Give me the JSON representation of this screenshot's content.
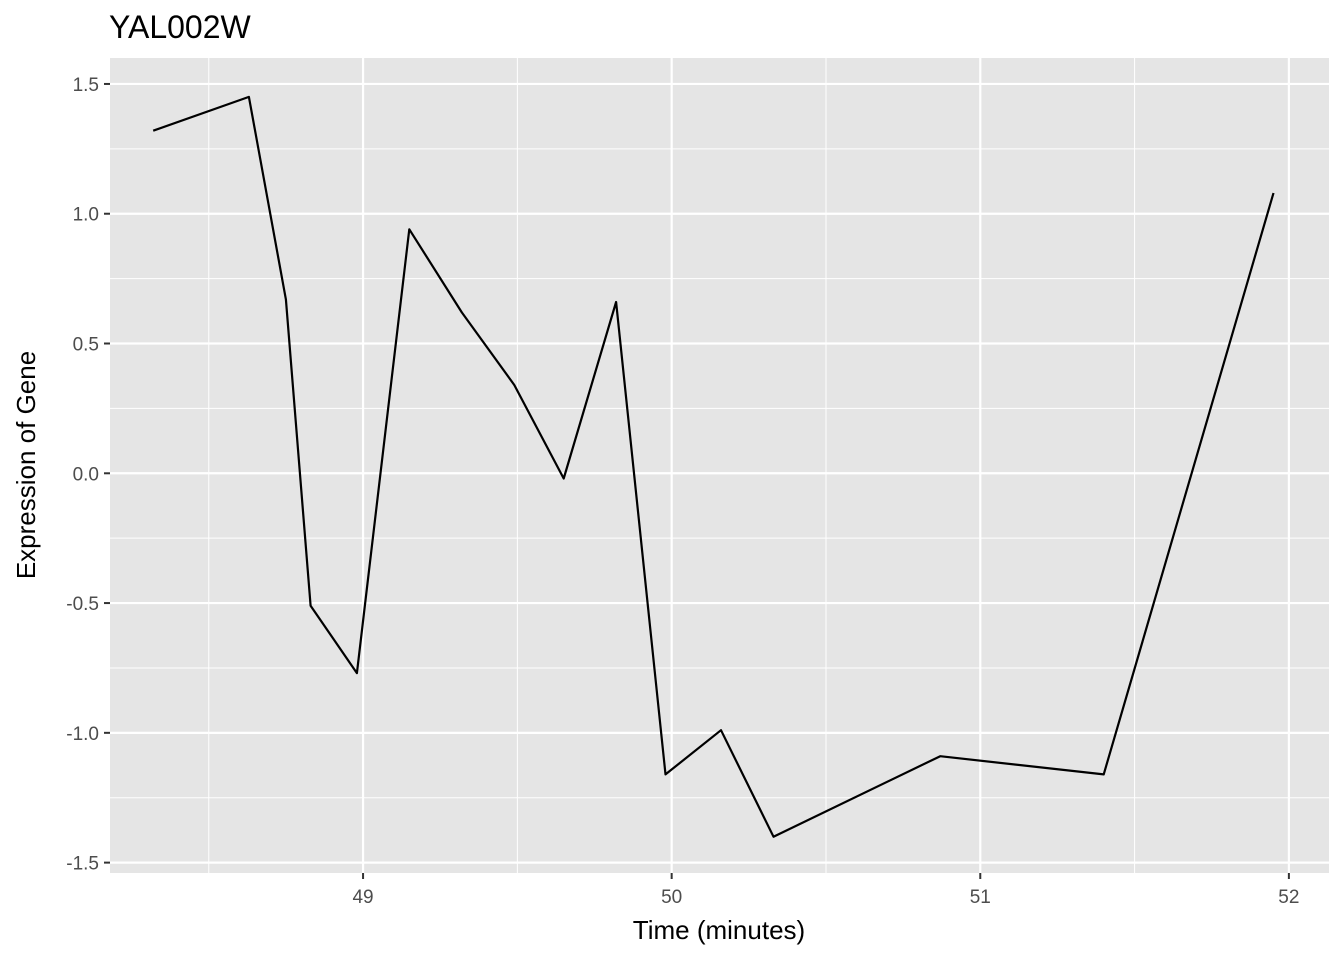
{
  "chart_data": {
    "type": "line",
    "title": "YAL002W",
    "xlabel": "Time (minutes)",
    "ylabel": "Expression of Gene",
    "xlim": [
      48.18,
      52.13
    ],
    "ylim": [
      -1.54,
      1.6
    ],
    "x_ticks": [
      49,
      50,
      51,
      52
    ],
    "x_tick_labels": [
      "49",
      "50",
      "51",
      "52"
    ],
    "y_ticks": [
      -1.5,
      -1.0,
      -0.5,
      0.0,
      0.5,
      1.0,
      1.5
    ],
    "y_tick_labels": [
      "-1.5",
      "-1.0",
      "-0.5",
      "0.0",
      "0.5",
      "1.0",
      "1.5"
    ],
    "grid": true,
    "background": "#e5e5e5",
    "grid_color": "#ffffff",
    "line_color": "#000000",
    "series": [
      {
        "x": [
          48.32,
          48.63,
          48.75,
          48.83,
          48.98,
          49.15,
          49.32,
          49.49,
          49.65,
          49.82,
          49.98,
          50.16,
          50.33,
          50.87,
          51.4,
          51.95
        ],
        "y": [
          1.32,
          1.45,
          0.67,
          -0.51,
          -0.77,
          0.94,
          0.62,
          0.34,
          -0.02,
          0.66,
          -1.16,
          -0.99,
          -1.4,
          -1.09,
          -1.16,
          1.08
        ]
      }
    ]
  }
}
